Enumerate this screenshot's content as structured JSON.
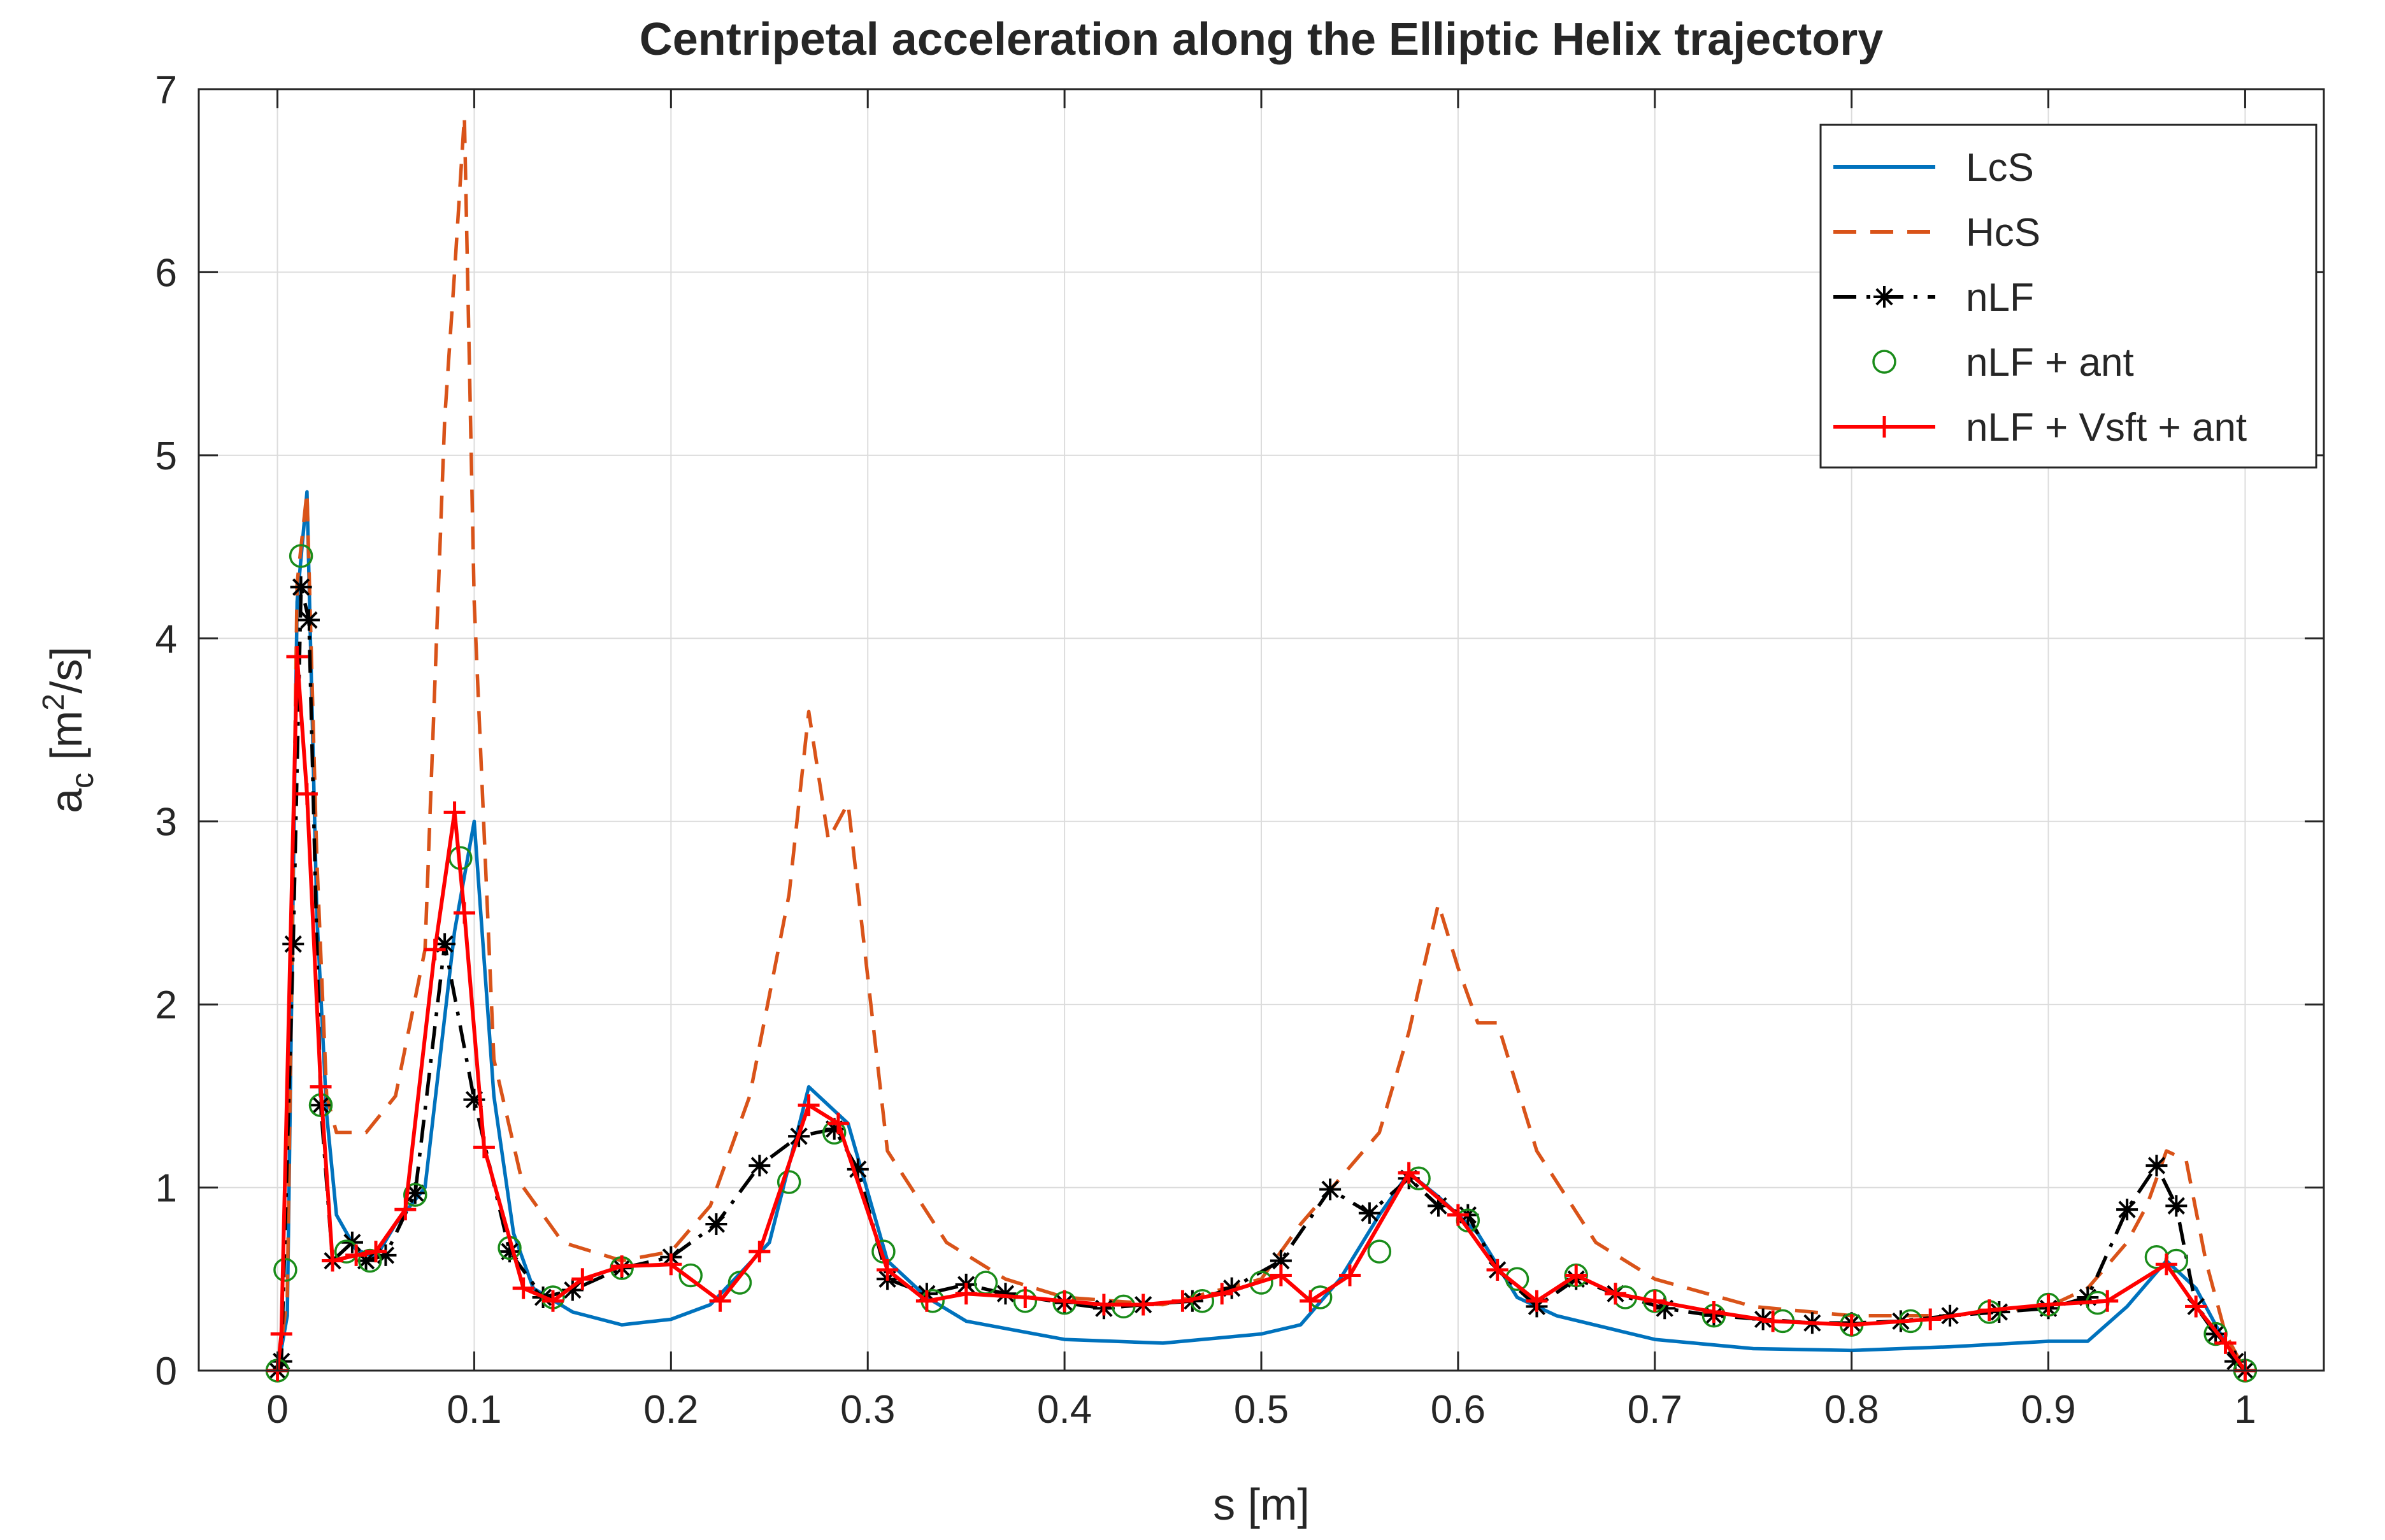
{
  "chart_data": {
    "type": "line",
    "title": "Centripetal acceleration along the Elliptic Helix  trajectory",
    "xlabel": "s [m]",
    "ylabel_main": "a",
    "ylabel_sub": "c",
    "ylabel_unit_pre": " [m",
    "ylabel_unit_sup": "2",
    "ylabel_unit_post": "/s]",
    "xlim": [
      -0.04,
      1.04
    ],
    "ylim": [
      0,
      7
    ],
    "xticks": [
      0,
      0.1,
      0.2,
      0.3,
      0.4,
      0.5,
      0.6,
      0.7,
      0.8,
      0.9,
      1
    ],
    "xtick_labels": [
      "0",
      "0.1",
      "0.2",
      "0.3",
      "0.4",
      "0.5",
      "0.6",
      "0.7",
      "0.8",
      "0.9",
      "1"
    ],
    "yticks": [
      0,
      1,
      2,
      3,
      4,
      5,
      6,
      7
    ],
    "ytick_labels": [
      "0",
      "1",
      "2",
      "3",
      "4",
      "5",
      "6",
      "7"
    ],
    "grid": true,
    "legend_position": "top-right",
    "series": [
      {
        "name": "LcS",
        "style": "solid",
        "marker": "none",
        "color": "#0072BD",
        "x": [
          0,
          0.005,
          0.01,
          0.015,
          0.02,
          0.025,
          0.03,
          0.04,
          0.05,
          0.06,
          0.075,
          0.09,
          0.1,
          0.11,
          0.12,
          0.13,
          0.15,
          0.175,
          0.2,
          0.22,
          0.25,
          0.27,
          0.29,
          0.31,
          0.33,
          0.35,
          0.4,
          0.45,
          0.5,
          0.52,
          0.54,
          0.56,
          0.575,
          0.59,
          0.61,
          0.63,
          0.65,
          0.7,
          0.75,
          0.8,
          0.85,
          0.9,
          0.92,
          0.94,
          0.96,
          0.975,
          0.99,
          1
        ],
        "y": [
          0,
          0.3,
          4.2,
          4.8,
          2.5,
          1.4,
          0.85,
          0.66,
          0.62,
          0.8,
          1.0,
          2.4,
          3.0,
          1.5,
          0.75,
          0.45,
          0.32,
          0.25,
          0.28,
          0.36,
          0.7,
          1.55,
          1.35,
          0.6,
          0.4,
          0.27,
          0.17,
          0.15,
          0.2,
          0.25,
          0.5,
          0.85,
          1.08,
          0.95,
          0.75,
          0.4,
          0.3,
          0.17,
          0.12,
          0.11,
          0.13,
          0.16,
          0.16,
          0.35,
          0.6,
          0.45,
          0.15,
          0
        ]
      },
      {
        "name": "HcS",
        "style": "dashed",
        "marker": "none",
        "color": "#D95319",
        "x": [
          0,
          0.005,
          0.01,
          0.015,
          0.02,
          0.025,
          0.03,
          0.035,
          0.045,
          0.06,
          0.075,
          0.085,
          0.09,
          0.095,
          0.1,
          0.11,
          0.125,
          0.145,
          0.175,
          0.2,
          0.22,
          0.24,
          0.26,
          0.27,
          0.28,
          0.29,
          0.31,
          0.34,
          0.37,
          0.4,
          0.45,
          0.5,
          0.52,
          0.54,
          0.56,
          0.575,
          0.59,
          0.6,
          0.61,
          0.62,
          0.64,
          0.67,
          0.7,
          0.75,
          0.8,
          0.85,
          0.9,
          0.92,
          0.94,
          0.95,
          0.96,
          0.97,
          0.98,
          0.99,
          1
        ],
        "y": [
          0,
          0.4,
          4.3,
          4.8,
          2.8,
          1.5,
          1.3,
          1.3,
          1.3,
          1.5,
          2.3,
          5.2,
          6.0,
          6.85,
          4.2,
          1.7,
          1.0,
          0.7,
          0.6,
          0.65,
          0.9,
          1.5,
          2.6,
          3.6,
          2.9,
          3.1,
          1.2,
          0.7,
          0.5,
          0.4,
          0.36,
          0.5,
          0.8,
          1.05,
          1.3,
          1.85,
          2.55,
          2.2,
          1.9,
          1.9,
          1.2,
          0.7,
          0.5,
          0.35,
          0.3,
          0.3,
          0.35,
          0.45,
          0.7,
          0.9,
          1.2,
          1.15,
          0.6,
          0.2,
          0
        ]
      },
      {
        "name": "nLF",
        "style": "dashdot",
        "marker": "asterisk",
        "color": "#000000",
        "x": [
          0,
          0.002,
          0.008,
          0.012,
          0.016,
          0.022,
          0.028,
          0.038,
          0.045,
          0.055,
          0.07,
          0.085,
          0.1,
          0.118,
          0.135,
          0.15,
          0.175,
          0.2,
          0.223,
          0.245,
          0.265,
          0.283,
          0.295,
          0.31,
          0.33,
          0.35,
          0.37,
          0.4,
          0.42,
          0.44,
          0.465,
          0.485,
          0.51,
          0.535,
          0.555,
          0.575,
          0.59,
          0.605,
          0.62,
          0.64,
          0.66,
          0.68,
          0.705,
          0.73,
          0.755,
          0.78,
          0.8,
          0.825,
          0.85,
          0.875,
          0.9,
          0.92,
          0.94,
          0.955,
          0.965,
          0.975,
          0.985,
          0.995,
          1
        ],
        "y": [
          0,
          0.05,
          2.33,
          4.28,
          4.1,
          1.45,
          0.6,
          0.7,
          0.6,
          0.63,
          0.97,
          2.33,
          1.48,
          0.65,
          0.4,
          0.44,
          0.56,
          0.62,
          0.8,
          1.12,
          1.28,
          1.32,
          1.1,
          0.5,
          0.42,
          0.47,
          0.42,
          0.37,
          0.34,
          0.36,
          0.38,
          0.45,
          0.6,
          0.99,
          0.86,
          1.05,
          0.9,
          0.85,
          0.55,
          0.35,
          0.5,
          0.42,
          0.34,
          0.3,
          0.28,
          0.26,
          0.26,
          0.27,
          0.3,
          0.32,
          0.34,
          0.4,
          0.88,
          1.12,
          0.9,
          0.35,
          0.2,
          0.05,
          0
        ]
      },
      {
        "name": "nLF + ant",
        "style": "none",
        "marker": "circle",
        "color": "#1A8C1A",
        "x": [
          0,
          0.004,
          0.012,
          0.022,
          0.035,
          0.047,
          0.07,
          0.093,
          0.118,
          0.14,
          0.175,
          0.21,
          0.235,
          0.26,
          0.283,
          0.308,
          0.333,
          0.36,
          0.38,
          0.4,
          0.43,
          0.47,
          0.5,
          0.53,
          0.56,
          0.58,
          0.605,
          0.63,
          0.66,
          0.685,
          0.7,
          0.73,
          0.765,
          0.8,
          0.83,
          0.87,
          0.9,
          0.925,
          0.955,
          0.965,
          0.985,
          1
        ],
        "y": [
          0,
          0.55,
          4.45,
          1.45,
          0.65,
          0.6,
          0.96,
          2.8,
          0.67,
          0.4,
          0.56,
          0.52,
          0.48,
          1.03,
          1.3,
          0.65,
          0.38,
          0.48,
          0.38,
          0.37,
          0.35,
          0.38,
          0.48,
          0.4,
          0.65,
          1.05,
          0.82,
          0.5,
          0.52,
          0.4,
          0.38,
          0.3,
          0.27,
          0.25,
          0.27,
          0.32,
          0.36,
          0.37,
          0.62,
          0.6,
          0.2,
          0
        ]
      },
      {
        "name": "nLF + Vsft + ant",
        "style": "solid",
        "marker": "plus",
        "color": "#FF0000",
        "x": [
          0,
          0.002,
          0.01,
          0.015,
          0.022,
          0.028,
          0.04,
          0.05,
          0.065,
          0.08,
          0.09,
          0.095,
          0.105,
          0.125,
          0.14,
          0.155,
          0.175,
          0.2,
          0.225,
          0.245,
          0.27,
          0.285,
          0.31,
          0.33,
          0.35,
          0.38,
          0.4,
          0.42,
          0.44,
          0.46,
          0.48,
          0.51,
          0.525,
          0.545,
          0.575,
          0.6,
          0.62,
          0.64,
          0.66,
          0.68,
          0.7,
          0.73,
          0.76,
          0.8,
          0.84,
          0.87,
          0.9,
          0.93,
          0.96,
          0.975,
          0.99,
          1
        ],
        "y": [
          0,
          0.2,
          3.9,
          3.15,
          1.55,
          0.6,
          0.63,
          0.65,
          0.88,
          2.3,
          3.05,
          2.5,
          1.22,
          0.45,
          0.38,
          0.5,
          0.57,
          0.58,
          0.38,
          0.65,
          1.45,
          1.35,
          0.55,
          0.38,
          0.42,
          0.4,
          0.38,
          0.36,
          0.36,
          0.38,
          0.42,
          0.52,
          0.38,
          0.52,
          1.08,
          0.85,
          0.55,
          0.38,
          0.52,
          0.42,
          0.38,
          0.32,
          0.27,
          0.25,
          0.28,
          0.33,
          0.36,
          0.38,
          0.58,
          0.35,
          0.15,
          0
        ]
      }
    ]
  }
}
